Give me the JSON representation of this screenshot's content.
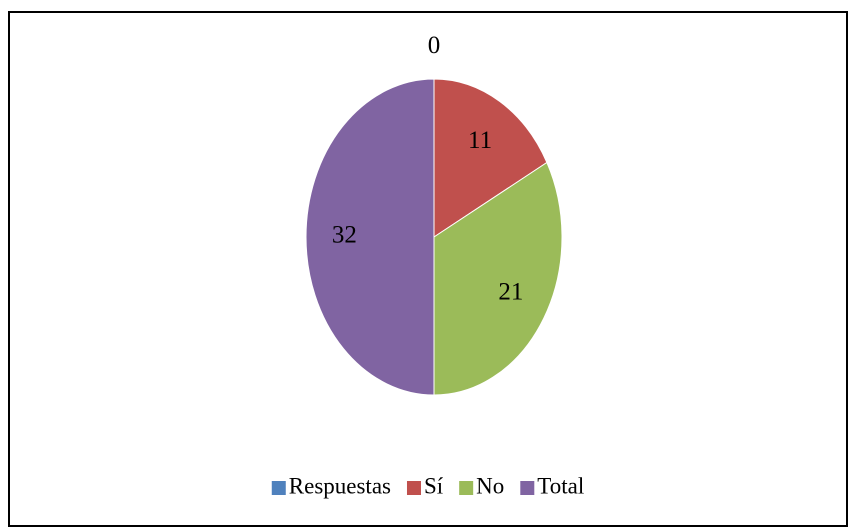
{
  "chart_data": {
    "type": "pie",
    "categories": [
      "Respuestas",
      "Sí",
      "No",
      "Total"
    ],
    "values": [
      0,
      11,
      21,
      32
    ],
    "colors": [
      "#4f81bd",
      "#c0504d",
      "#9bbb59",
      "#8064a2"
    ],
    "legend": "bottom"
  }
}
